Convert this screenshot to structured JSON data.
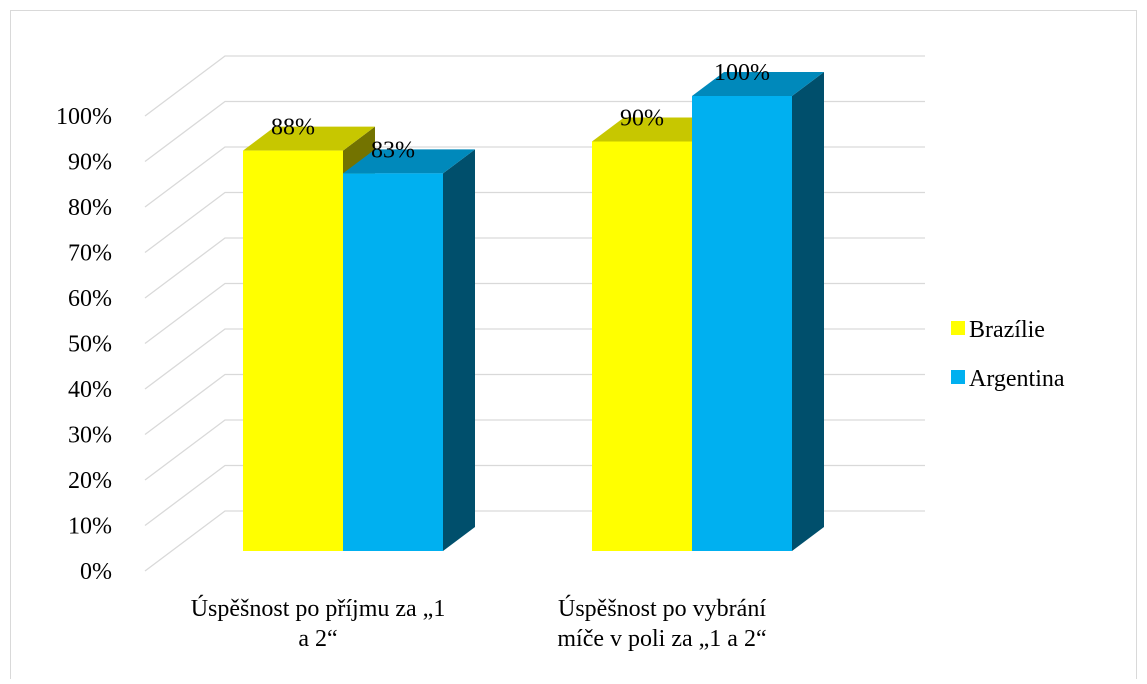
{
  "chart_data": {
    "type": "bar3d",
    "categories": [
      "Úspěšnost po příjmu za „1 a 2“",
      "Úspěšnost po vybrání míče v poli za „1 a 2“"
    ],
    "series": [
      {
        "name": "Brazílie",
        "color": "#ffff00",
        "values": [
          88,
          90
        ],
        "value_labels": [
          "88%",
          "90%"
        ]
      },
      {
        "name": "Argentina",
        "color": "#00b0f0",
        "values": [
          83,
          100
        ],
        "value_labels": [
          "83%",
          "100%"
        ]
      }
    ],
    "ylim": [
      0,
      100
    ],
    "yticks": [
      {
        "value": 0,
        "label": "0%"
      },
      {
        "value": 10,
        "label": "10%"
      },
      {
        "value": 20,
        "label": "20%"
      },
      {
        "value": 30,
        "label": "30%"
      },
      {
        "value": 40,
        "label": "40%"
      },
      {
        "value": 50,
        "label": "50%"
      },
      {
        "value": 60,
        "label": "60%"
      },
      {
        "value": 70,
        "label": "70%"
      },
      {
        "value": 80,
        "label": "80%"
      },
      {
        "value": 90,
        "label": "90%"
      },
      {
        "value": 100,
        "label": "100%"
      }
    ],
    "grid": true,
    "legend": "right"
  }
}
